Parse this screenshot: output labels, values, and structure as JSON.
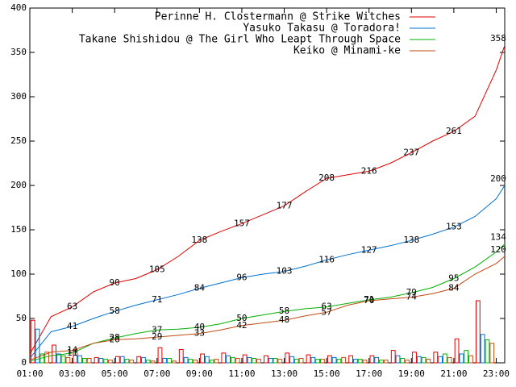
{
  "chart_data": {
    "type": "line",
    "legend": "top right",
    "xlim": [
      1,
      23.4
    ],
    "ylim": [
      0,
      400
    ],
    "yticks": [
      0,
      50,
      100,
      150,
      200,
      250,
      300,
      350,
      400
    ],
    "xticks": [
      {
        "value": 1,
        "label": "01:00"
      },
      {
        "value": 3,
        "label": "03:00"
      },
      {
        "value": 5,
        "label": "05:00"
      },
      {
        "value": 7,
        "label": "07:00"
      },
      {
        "value": 9,
        "label": "09:00"
      },
      {
        "value": 11,
        "label": "11:00"
      },
      {
        "value": 13,
        "label": "13:00"
      },
      {
        "value": 15,
        "label": "15:00"
      },
      {
        "value": 17,
        "label": "17:00"
      },
      {
        "value": 19,
        "label": "19:00"
      },
      {
        "value": 21,
        "label": "21:00"
      },
      {
        "value": 23,
        "label": "23:00"
      }
    ],
    "x": [
      1,
      2,
      3,
      4,
      5,
      6,
      7,
      8,
      9,
      10,
      11,
      12,
      13,
      14,
      15,
      16,
      17,
      18,
      19,
      20,
      21,
      22,
      23,
      23.4
    ],
    "bar_x": [
      1,
      2,
      3,
      4,
      5,
      6,
      7,
      8,
      9,
      10,
      11,
      12,
      13,
      14,
      15,
      16,
      17,
      18,
      19,
      20,
      21,
      22
    ],
    "series": [
      {
        "name": "Perinne H. Clostermann @ Strike Witches",
        "color": "#e00000",
        "values": [
          10,
          52,
          63,
          80,
          90,
          95,
          105,
          120,
          138,
          148,
          157,
          167,
          177,
          193,
          208,
          212,
          216,
          225,
          237,
          250,
          261,
          278,
          330,
          358
        ],
        "bar_values": [
          48,
          20,
          15,
          6,
          7,
          7,
          17,
          15,
          10,
          11,
          9,
          8,
          11,
          9,
          8,
          8,
          8,
          14,
          12,
          12,
          27,
          70
        ]
      },
      {
        "name": "Yasuko Takasu @ Toradora!",
        "color": "#0070d0",
        "values": [
          5,
          35,
          41,
          50,
          58,
          65,
          71,
          77,
          84,
          90,
          96,
          100,
          103,
          109,
          116,
          122,
          127,
          132,
          138,
          145,
          153,
          165,
          185,
          200
        ],
        "bar_values": [
          38,
          10,
          8,
          5,
          7,
          6,
          5,
          6,
          7,
          8,
          6,
          5,
          7,
          6,
          6,
          4,
          6,
          8,
          7,
          7,
          10,
          32
        ]
      },
      {
        "name": "Takane Shishidou @ The Girl Who Leapt Through Space",
        "color": "#00b000",
        "values": [
          2,
          8,
          11,
          22,
          28,
          33,
          37,
          38,
          40,
          44,
          50,
          54,
          58,
          61,
          63,
          67,
          71,
          74,
          79,
          85,
          95,
          108,
          125,
          134
        ],
        "bar_values": [
          10,
          8,
          5,
          4,
          4,
          3,
          5,
          4,
          3,
          6,
          5,
          5,
          4,
          4,
          4,
          4,
          3,
          5,
          6,
          10,
          14,
          26
        ]
      },
      {
        "name": "Keiko @ Minami-ke",
        "color": "#c04a10",
        "values": [
          3,
          12,
          14,
          22,
          26,
          27,
          29,
          31,
          33,
          37,
          42,
          45,
          48,
          53,
          57,
          65,
          70,
          72,
          74,
          78,
          84,
          100,
          112,
          120
        ],
        "bar_values": [
          12,
          6,
          5,
          3,
          3,
          2,
          2,
          3,
          4,
          5,
          4,
          4,
          5,
          4,
          6,
          3,
          3,
          3,
          4,
          6,
          8,
          22
        ]
      }
    ]
  }
}
